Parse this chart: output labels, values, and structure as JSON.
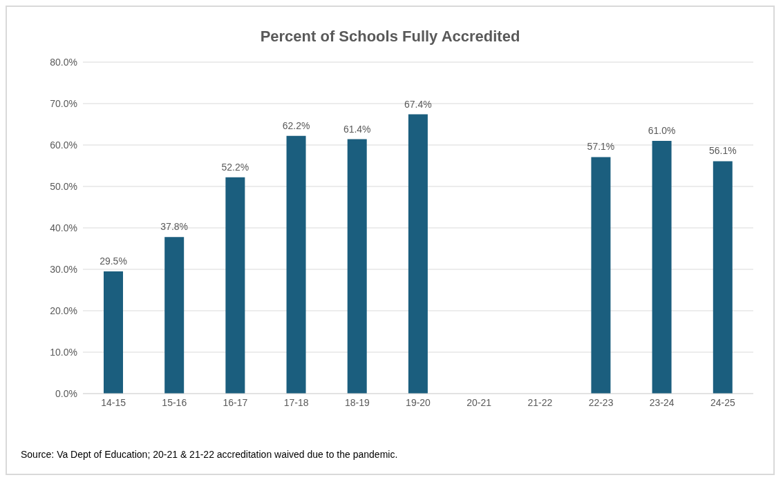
{
  "chart_data": {
    "type": "bar",
    "title": "Percent of Schools Fully Accredited",
    "categories": [
      "14-15",
      "15-16",
      "16-17",
      "17-18",
      "18-19",
      "19-20",
      "20-21",
      "21-22",
      "22-23",
      "23-24",
      "24-25"
    ],
    "values": [
      29.5,
      37.8,
      52.2,
      62.2,
      61.4,
      67.4,
      null,
      null,
      57.1,
      61.0,
      56.1
    ],
    "value_labels": [
      "29.5%",
      "37.8%",
      "52.2%",
      "62.2%",
      "61.4%",
      "67.4%",
      null,
      null,
      "57.1%",
      "61.0%",
      "56.1%"
    ],
    "color": "#1b5e7e",
    "ylim": [
      0,
      80
    ],
    "yticks": [
      {
        "value": 0,
        "label": "0.0%"
      },
      {
        "value": 10,
        "label": "10.0%"
      },
      {
        "value": 20,
        "label": "20.0%"
      },
      {
        "value": 30,
        "label": "30.0%"
      },
      {
        "value": 40,
        "label": "40.0%"
      },
      {
        "value": 50,
        "label": "50.0%"
      },
      {
        "value": 60,
        "label": "60.0%"
      },
      {
        "value": 70,
        "label": "70.0%"
      },
      {
        "value": 80,
        "label": "80.0%"
      }
    ],
    "grid": "y",
    "annotations": [
      "Source: Va Dept of Education; 20-21 & 21-22 accreditation waived due to the pandemic."
    ]
  }
}
